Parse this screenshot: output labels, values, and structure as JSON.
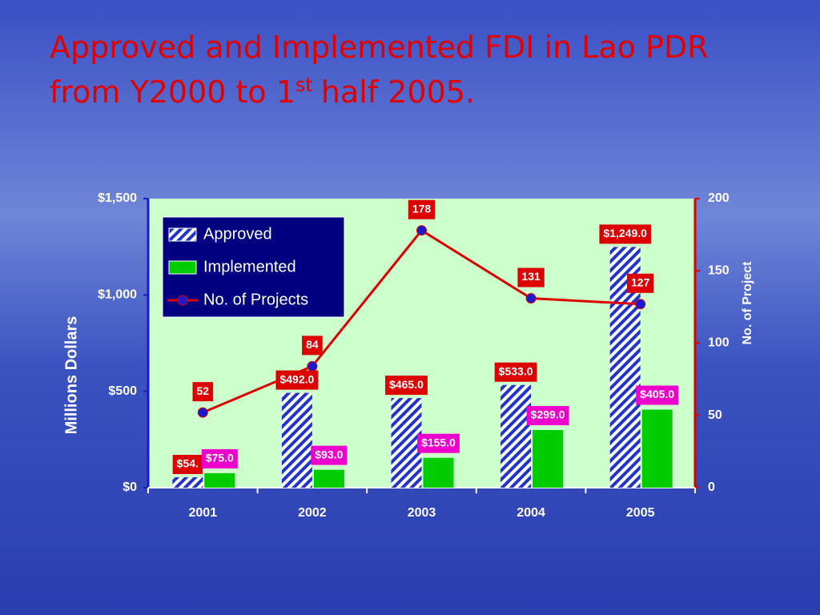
{
  "title_parts": [
    "Approved and Implemented FDI in Lao PDR",
    "from Y2000 to 1",
    "st",
    "half 2005."
  ],
  "chart_data": {
    "type": "bar-line",
    "ylabel": "Millions Dollars",
    "y2label": "No. of Project",
    "categories": [
      "2001",
      "2002",
      "2003",
      "2004",
      "2005"
    ],
    "series": [
      {
        "name": "Approved",
        "type": "bar",
        "color": "#2233cc",
        "values": [
          54,
          492,
          465,
          533,
          1249
        ],
        "value_labels": [
          "$54.",
          "$492.0",
          "$465.0",
          "$533.0",
          "$1,249.0"
        ]
      },
      {
        "name": "Implemented",
        "type": "bar",
        "color": "#00cc00",
        "values": [
          75,
          93,
          155,
          299,
          405
        ],
        "value_labels": [
          "$75.0",
          "$93.0",
          "$155.0",
          "$299.0",
          "$405.0"
        ]
      },
      {
        "name": "No. of Projects",
        "type": "line",
        "axis": "y2",
        "color": "#dd0000",
        "marker_color": "#1a1acc",
        "values": [
          52,
          84,
          178,
          131,
          127
        ]
      }
    ],
    "ylim": [
      0,
      1500
    ],
    "yticks": [
      {
        "value": 0,
        "label": "$0"
      },
      {
        "value": 500,
        "label": "$500"
      },
      {
        "value": 1000,
        "label": "$1,000"
      },
      {
        "value": 1500,
        "label": "$1,500"
      }
    ],
    "y2lim": [
      0,
      200
    ],
    "y2ticks": [
      0,
      50,
      100,
      150,
      200
    ],
    "legend": "top-left"
  }
}
